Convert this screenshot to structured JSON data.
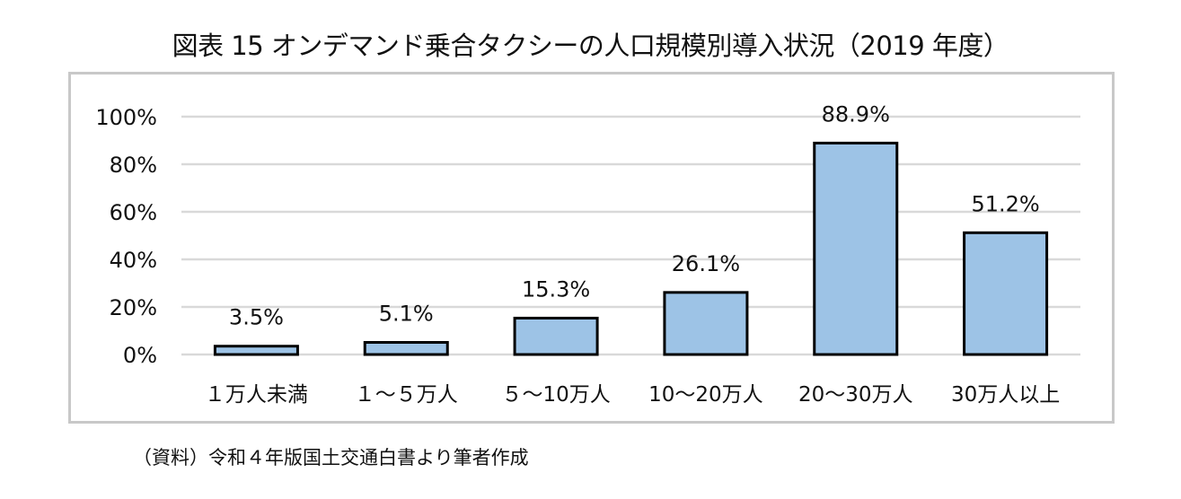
{
  "chart_data": {
    "type": "bar",
    "title": "図表 15  オンデマンド乗合タクシーの人口規模別導入状況（2019 年度）",
    "categories": [
      "１万人未満",
      "１～５万人",
      "５～10万人",
      "10～20万人",
      "20～30万人",
      "30万人以上"
    ],
    "values": [
      3.5,
      5.1,
      15.3,
      26.1,
      88.9,
      51.2
    ],
    "data_labels": [
      "3.5%",
      "5.1%",
      "15.3%",
      "26.1%",
      "88.9%",
      "51.2%"
    ],
    "xlabel": "",
    "ylabel": "",
    "ylim": [
      0,
      100
    ],
    "yticks": [
      0,
      20,
      40,
      60,
      80,
      100
    ],
    "ytick_labels": [
      "0%",
      "20%",
      "40%",
      "60%",
      "80%",
      "100%"
    ],
    "grid": true,
    "bar_color": "#9DC3E6",
    "bar_edge_color": "#000000",
    "source": "（資料）令和４年版国土交通白書より筆者作成"
  }
}
